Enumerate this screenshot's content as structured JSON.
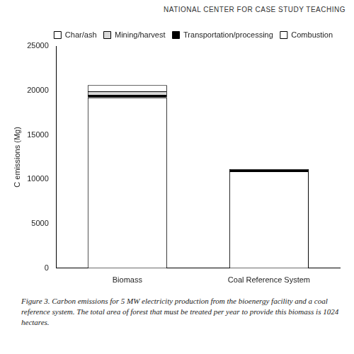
{
  "chart_data": {
    "type": "bar",
    "header": "NATIONAL CENTER FOR CASE STUDY TEACHING",
    "caption": "Figure 3. Carbon emissions for 5 MW electricity production from the bioenergy facility and a coal reference system. The total area of forest that must be treated per year to provide this biomass is 1024 hectares.",
    "y_label": "C emissions (Mg)",
    "categories": [
      "Biomass",
      "Coal Reference System"
    ],
    "series": [
      {
        "name": "Combustion",
        "color": "#ffffff",
        "values": [
          19200,
          10900
        ]
      },
      {
        "name": "Transportation/processing",
        "color": "#000000",
        "values": [
          300,
          250
        ]
      },
      {
        "name": "Mining/harvest",
        "color": "#d9d9d9",
        "values": [
          400,
          0
        ]
      },
      {
        "name": "Char/ash",
        "color": "#ffffff",
        "values": [
          700,
          0
        ]
      }
    ],
    "stacked": true,
    "ylim": [
      0,
      25000
    ],
    "yticks": [
      0,
      5000,
      10000,
      15000,
      20000,
      25000
    ],
    "grid": false,
    "legend": "top-right"
  }
}
